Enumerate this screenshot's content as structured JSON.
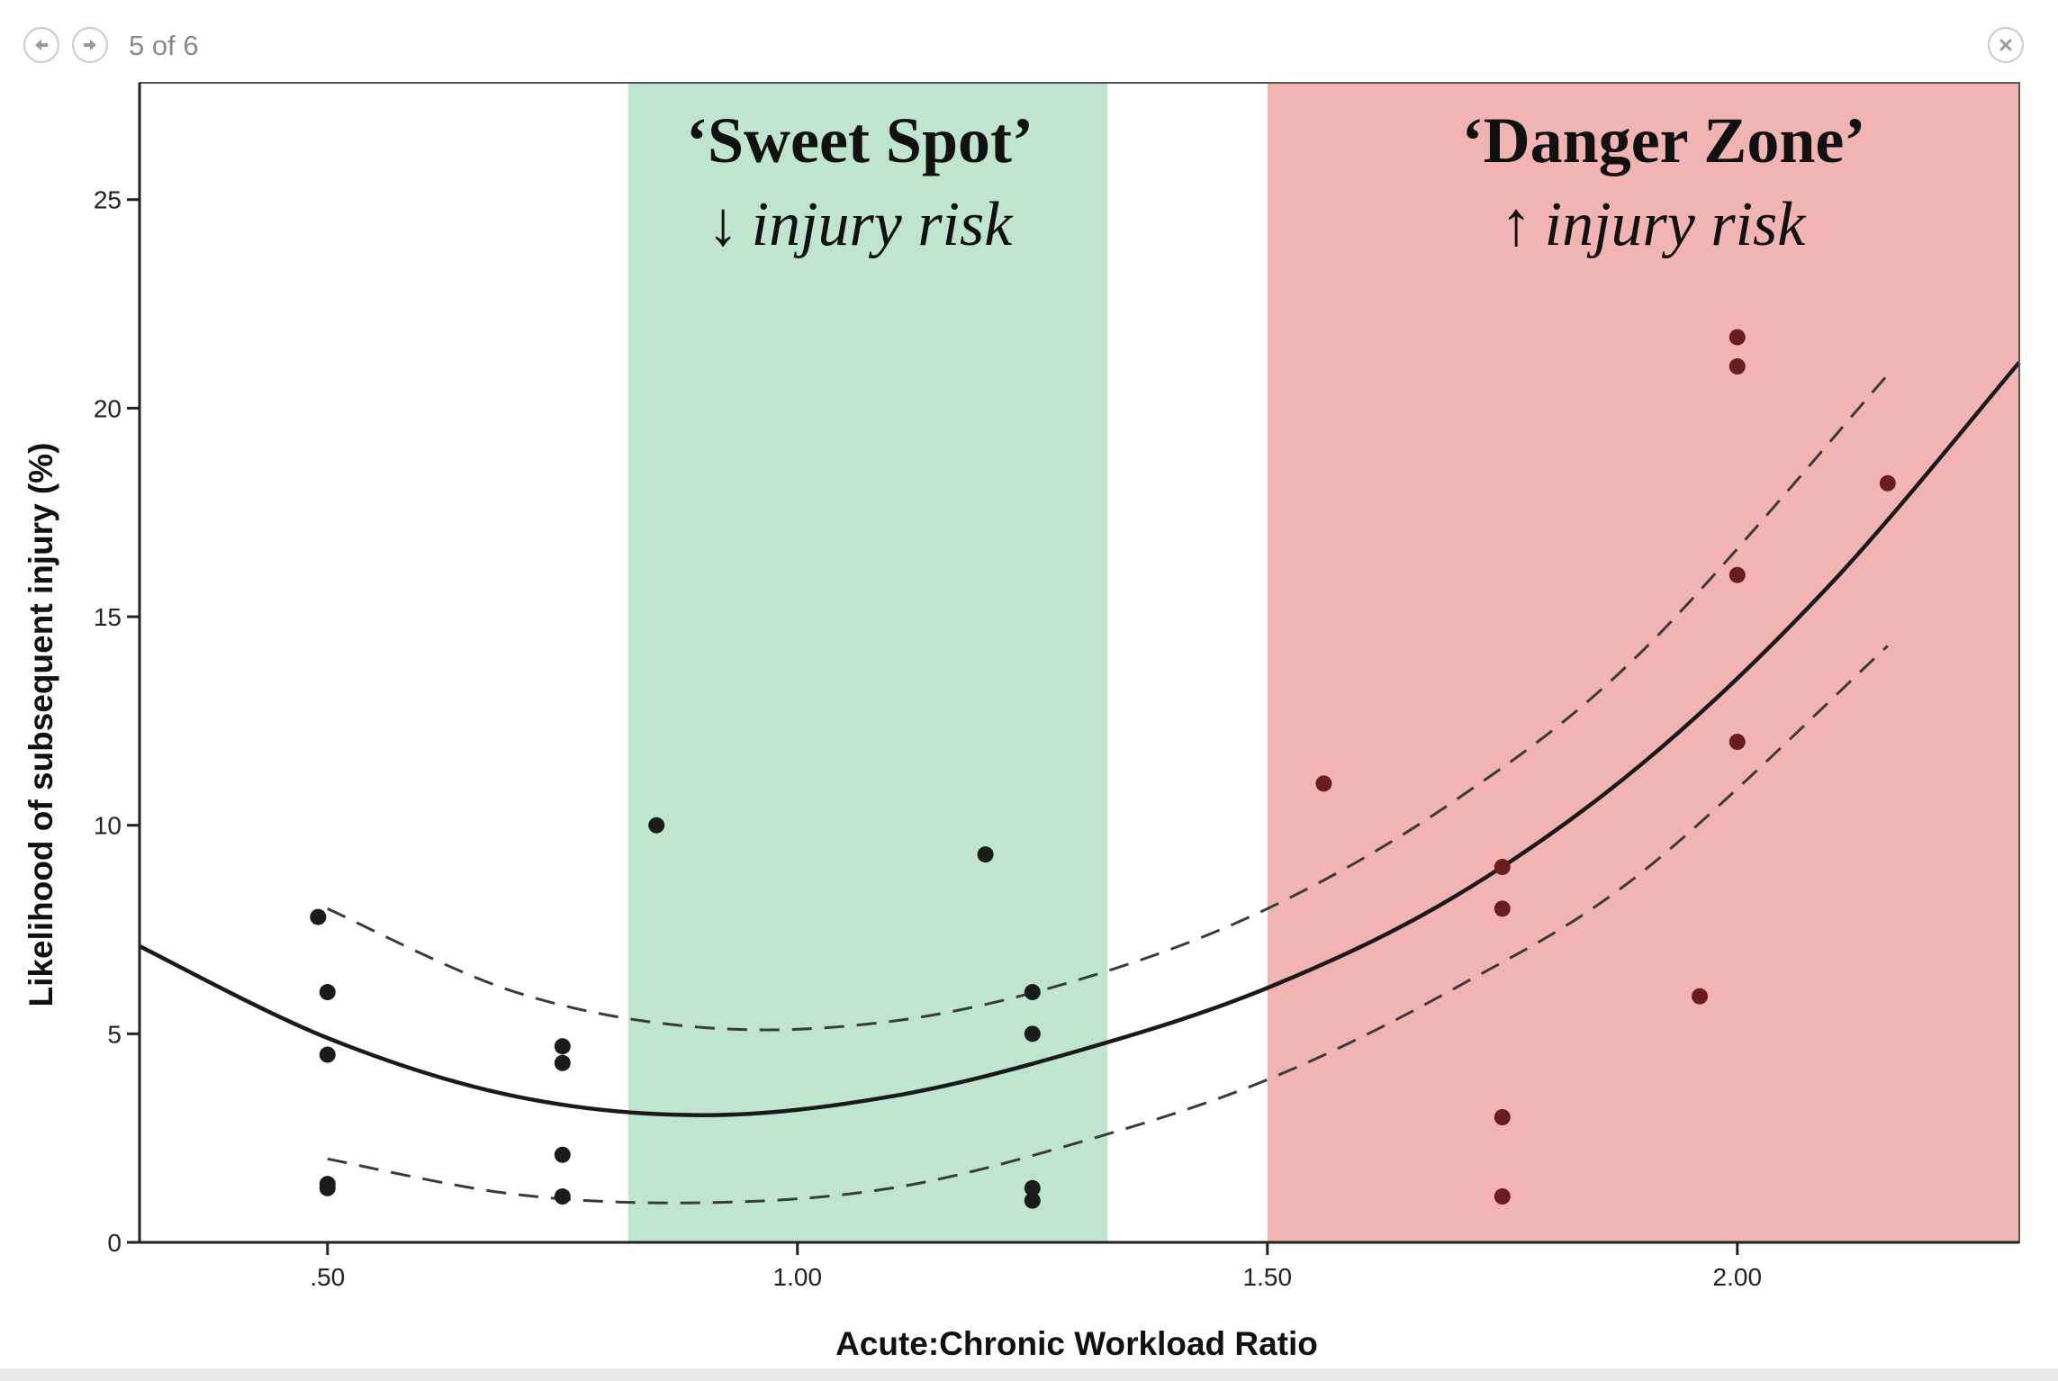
{
  "viewer": {
    "counter": "5 of 6",
    "prev_icon": "arrow-left-icon",
    "next_icon": "arrow-right-icon",
    "close_icon": "close-icon"
  },
  "colors": {
    "sweet_spot": "#bfe5ce",
    "danger_zone": "#f2b3b3",
    "danger_zone_light": "#e9b9be",
    "point_dark": "#1b1b1b",
    "point_danger": "#6b1d1d",
    "axis": "#222222"
  },
  "chart_data": {
    "type": "scatter",
    "title": "",
    "xlabel": "Acute:Chronic Workload Ratio",
    "ylabel": "Likelihood of subsequent injury (%)",
    "xlim": [
      0.3,
      2.3
    ],
    "ylim": [
      0,
      27.8
    ],
    "xticks": [
      0.5,
      1.0,
      1.5,
      2.0
    ],
    "xtick_labels": [
      ".50",
      "1.00",
      "1.50",
      "2.00"
    ],
    "yticks": [
      0,
      5,
      10,
      15,
      20,
      25
    ],
    "ytick_labels": [
      "0",
      "5",
      "10",
      "15",
      "20",
      "25"
    ],
    "grid": false,
    "zones": [
      {
        "name": "sweet-spot",
        "x_from": 0.82,
        "x_to": 1.33,
        "title": "‘Sweet Spot’",
        "arrow": "↓",
        "subtitle": "injury risk"
      },
      {
        "name": "danger-zone",
        "x_from": 1.5,
        "x_to": 2.3,
        "title": "‘Danger Zone’",
        "arrow": "↑",
        "subtitle": "injury risk"
      }
    ],
    "points": [
      {
        "x": 0.49,
        "y": 7.8
      },
      {
        "x": 0.5,
        "y": 6.0
      },
      {
        "x": 0.5,
        "y": 4.5
      },
      {
        "x": 0.5,
        "y": 1.4
      },
      {
        "x": 0.5,
        "y": 1.3
      },
      {
        "x": 0.75,
        "y": 4.7
      },
      {
        "x": 0.75,
        "y": 4.3
      },
      {
        "x": 0.75,
        "y": 2.1
      },
      {
        "x": 0.75,
        "y": 1.1
      },
      {
        "x": 0.85,
        "y": 10.0
      },
      {
        "x": 1.2,
        "y": 9.3
      },
      {
        "x": 1.25,
        "y": 6.0
      },
      {
        "x": 1.25,
        "y": 5.0
      },
      {
        "x": 1.25,
        "y": 1.3
      },
      {
        "x": 1.25,
        "y": 1.0
      },
      {
        "x": 1.56,
        "y": 11.0
      },
      {
        "x": 1.75,
        "y": 9.0
      },
      {
        "x": 1.75,
        "y": 8.0
      },
      {
        "x": 1.75,
        "y": 3.0
      },
      {
        "x": 1.75,
        "y": 1.1
      },
      {
        "x": 1.96,
        "y": 5.9
      },
      {
        "x": 2.0,
        "y": 21.7
      },
      {
        "x": 2.0,
        "y": 21.0
      },
      {
        "x": 2.0,
        "y": 16.0
      },
      {
        "x": 2.0,
        "y": 12.0
      },
      {
        "x": 2.16,
        "y": 18.2
      }
    ],
    "series": [
      {
        "name": "fit",
        "style": "solid",
        "x": [
          0.3,
          0.5,
          0.7,
          0.9,
          1.1,
          1.3,
          1.5,
          1.7,
          1.9,
          2.1,
          2.3
        ],
        "values": [
          7.1,
          4.9,
          3.5,
          3.05,
          3.5,
          4.6,
          6.1,
          8.3,
          11.5,
          15.8,
          21.1
        ]
      },
      {
        "name": "upper-ci",
        "style": "dashed",
        "x": [
          0.5,
          0.7,
          0.9,
          1.1,
          1.3,
          1.5,
          1.7,
          1.9,
          2.16
        ],
        "values": [
          8.0,
          6.0,
          5.15,
          5.3,
          6.3,
          8.0,
          10.6,
          14.2,
          20.8
        ]
      },
      {
        "name": "lower-ci",
        "style": "dashed",
        "x": [
          0.5,
          0.7,
          0.9,
          1.1,
          1.3,
          1.5,
          1.7,
          1.9,
          2.16
        ],
        "values": [
          2.0,
          1.15,
          0.95,
          1.3,
          2.4,
          3.9,
          6.1,
          8.9,
          14.3
        ]
      }
    ]
  }
}
